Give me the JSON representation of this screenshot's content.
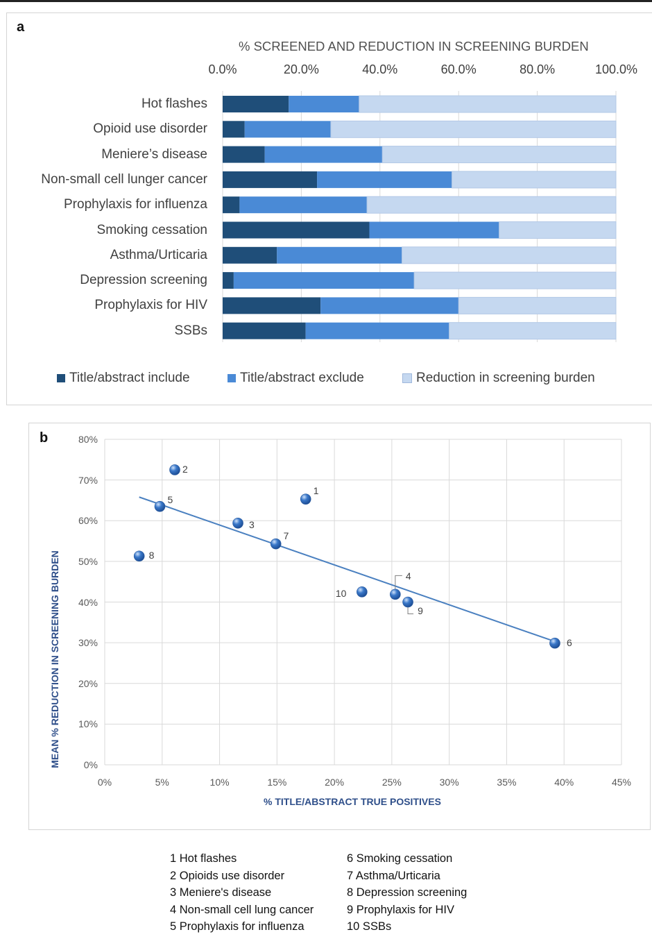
{
  "chart_data": [
    {
      "type": "bar",
      "panel": "a",
      "orientation": "horizontal",
      "stacked": true,
      "title": "% SCREENED AND REDUCTION IN SCREENING BURDEN",
      "xlim": [
        0,
        100
      ],
      "x_ticks": [
        "0.0%",
        "20.0%",
        "40.0%",
        "60.0%",
        "80.0%",
        "100.0%"
      ],
      "categories": [
        "Hot flashes",
        "Opioid use disorder",
        "Meniere’s disease",
        "Non-small cell lunger cancer",
        "Prophylaxis for influenza",
        "Smoking cessation",
        "Asthma/Urticaria",
        "Depression screening",
        "Prophylaxis for HIV",
        "SSBs"
      ],
      "series": [
        {
          "name": "Title/abstract include",
          "color": "#1f4e79",
          "values": [
            16.8,
            5.6,
            10.7,
            24.0,
            4.3,
            37.3,
            13.8,
            2.8,
            24.9,
            21.1
          ]
        },
        {
          "name": "Title/abstract exclude",
          "color": "#4a8ad6",
          "values": [
            17.9,
            21.9,
            29.9,
            34.3,
            32.4,
            33.0,
            31.8,
            45.9,
            35.1,
            36.5
          ]
        },
        {
          "name": "Reduction in screening burden",
          "color": "#c5d8f0",
          "values": [
            65.3,
            72.5,
            59.4,
            41.7,
            63.3,
            29.7,
            54.4,
            51.3,
            40.0,
            42.4
          ]
        }
      ],
      "legend_position": "bottom"
    },
    {
      "type": "scatter",
      "panel": "b",
      "xlabel": "% TITLE/ABSTRACT TRUE POSITIVES",
      "ylabel": "MEAN % REDUCTION IN SCREENING BURDEN",
      "xlim": [
        0,
        45
      ],
      "ylim": [
        0,
        80
      ],
      "x_ticks": [
        "0%",
        "5%",
        "10%",
        "15%",
        "20%",
        "25%",
        "30%",
        "35%",
        "40%",
        "45%"
      ],
      "y_ticks": [
        "0%",
        "10%",
        "20%",
        "30%",
        "40%",
        "50%",
        "60%",
        "70%",
        "80%"
      ],
      "grid": true,
      "points": [
        {
          "label": "1",
          "x": 17.5,
          "y": 65.3
        },
        {
          "label": "2",
          "x": 6.1,
          "y": 72.5
        },
        {
          "label": "3",
          "x": 11.6,
          "y": 59.4
        },
        {
          "label": "4",
          "x": 25.3,
          "y": 41.9
        },
        {
          "label": "5",
          "x": 4.8,
          "y": 63.5
        },
        {
          "label": "6",
          "x": 39.2,
          "y": 29.9
        },
        {
          "label": "7",
          "x": 14.9,
          "y": 54.3
        },
        {
          "label": "8",
          "x": 3.0,
          "y": 51.3
        },
        {
          "label": "9",
          "x": 26.4,
          "y": 40.0
        },
        {
          "label": "10",
          "x": 22.4,
          "y": 42.5
        }
      ],
      "trendline": {
        "x": [
          3.0,
          39.2
        ],
        "y": [
          65.8,
          30.3
        ]
      },
      "marker_color": "#3a78c9",
      "line_color": "#4a80c0"
    }
  ],
  "figure_labels": {
    "a": "a",
    "b": "b"
  },
  "key_list": {
    "left": [
      "1 Hot flashes",
      "2 Opioids use disorder",
      "3 Meniere's disease",
      "4 Non-small cell lung cancer",
      "5 Prophylaxis for influenza"
    ],
    "right": [
      "6 Smoking cessation",
      "7 Asthma/Urticaria",
      "8 Depression screening",
      "9 Prophylaxis for HIV",
      "10 SSBs"
    ]
  }
}
